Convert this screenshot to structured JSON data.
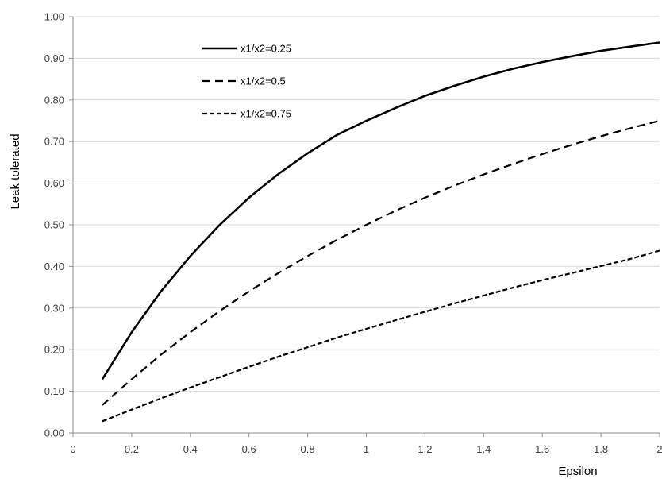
{
  "chart_data": {
    "type": "line",
    "title": "",
    "xlabel": "Epsilon",
    "ylabel": "Leak tolerated",
    "xlim": [
      0,
      2
    ],
    "ylim": [
      0,
      1
    ],
    "x_ticks": [
      "0",
      "0.2",
      "0.4",
      "0.6",
      "0.8",
      "1",
      "1.2",
      "1.4",
      "1.6",
      "1.8",
      "2"
    ],
    "y_ticks": [
      "0.00",
      "0.10",
      "0.20",
      "0.30",
      "0.40",
      "0.50",
      "0.60",
      "0.70",
      "0.80",
      "0.90",
      "1.00"
    ],
    "grid": "horizontal",
    "legend_position": "top-left",
    "series": [
      {
        "name": "x1/x2=0.25",
        "style": "solid",
        "x": [
          0.1,
          0.2,
          0.3,
          0.4,
          0.5,
          0.6,
          0.7,
          0.8,
          0.9,
          1.0,
          1.1,
          1.2,
          1.3,
          1.4,
          1.5,
          1.6,
          1.7,
          1.8,
          1.9,
          2.0
        ],
        "y": [
          0.129,
          0.242,
          0.34,
          0.425,
          0.5,
          0.565,
          0.622,
          0.672,
          0.716,
          0.75,
          0.781,
          0.81,
          0.834,
          0.856,
          0.875,
          0.891,
          0.905,
          0.918,
          0.928,
          0.938
        ]
      },
      {
        "name": "x1/x2=0.5",
        "style": "dashed",
        "x": [
          0.1,
          0.2,
          0.3,
          0.4,
          0.5,
          0.6,
          0.7,
          0.8,
          0.9,
          1.0,
          1.1,
          1.2,
          1.3,
          1.4,
          1.5,
          1.6,
          1.7,
          1.8,
          1.9,
          2.0
        ],
        "y": [
          0.067,
          0.129,
          0.188,
          0.242,
          0.293,
          0.34,
          0.384,
          0.425,
          0.464,
          0.5,
          0.534,
          0.565,
          0.594,
          0.621,
          0.646,
          0.67,
          0.692,
          0.713,
          0.732,
          0.75
        ]
      },
      {
        "name": "x1/x2=0.75",
        "style": "short-dashed",
        "x": [
          0.1,
          0.2,
          0.3,
          0.4,
          0.5,
          0.6,
          0.7,
          0.8,
          0.9,
          1.0,
          1.1,
          1.2,
          1.3,
          1.4,
          1.5,
          1.6,
          1.7,
          1.8,
          1.9,
          2.0
        ],
        "y": [
          0.028,
          0.056,
          0.083,
          0.109,
          0.134,
          0.159,
          0.183,
          0.206,
          0.229,
          0.25,
          0.271,
          0.291,
          0.311,
          0.33,
          0.349,
          0.367,
          0.384,
          0.401,
          0.418,
          0.438
        ]
      }
    ]
  }
}
